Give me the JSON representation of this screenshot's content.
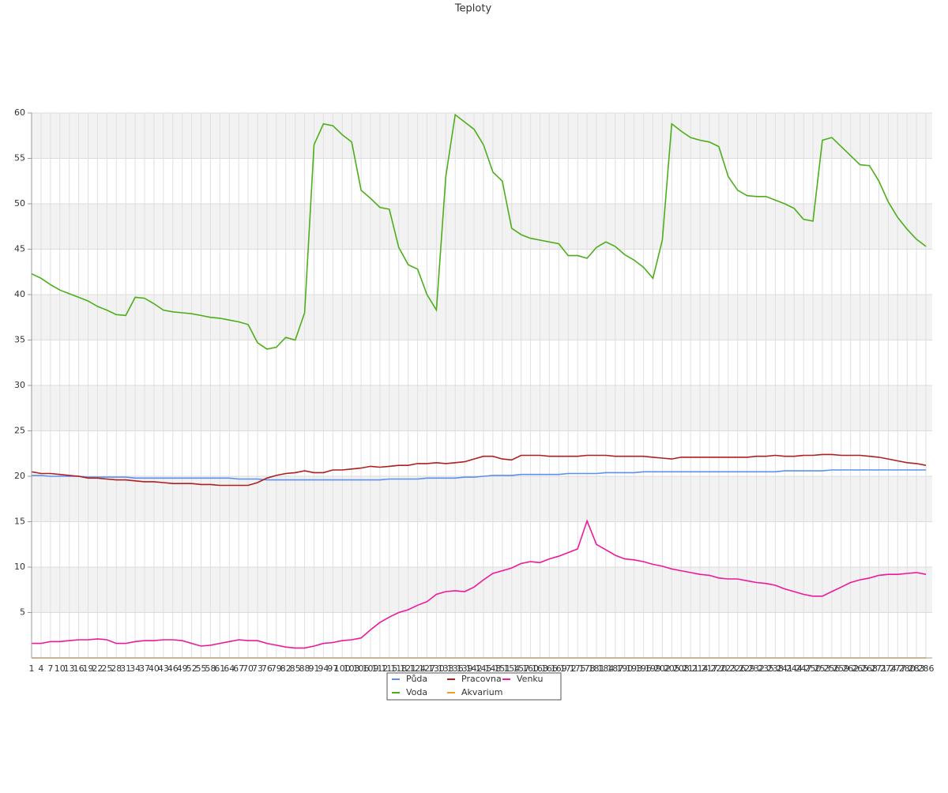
{
  "chart_data": {
    "type": "line",
    "title": "Teploty",
    "x": [
      1,
      4,
      7,
      10,
      13,
      16,
      19,
      22,
      25,
      28,
      31,
      34,
      37,
      40,
      43,
      46,
      49,
      52,
      55,
      58,
      61,
      64,
      67,
      70,
      73,
      76,
      79,
      82,
      85,
      88,
      91,
      94,
      97,
      100,
      103,
      106,
      109,
      112,
      115,
      118,
      121,
      124,
      127,
      130,
      133,
      136,
      139,
      142,
      145,
      148,
      151,
      154,
      157,
      160,
      163,
      166,
      169,
      172,
      175,
      178,
      181,
      184,
      187,
      190,
      193,
      196,
      199,
      202,
      205,
      208,
      211,
      214,
      217,
      220,
      223,
      226,
      229,
      232,
      235,
      238,
      241,
      244,
      247,
      250,
      253,
      256,
      259,
      262,
      265,
      268,
      271,
      274,
      277,
      280,
      283,
      286
    ],
    "xlim": [
      1,
      288
    ],
    "ylim": [
      0,
      60
    ],
    "yticks": [
      5,
      10,
      15,
      20,
      25,
      30,
      35,
      40,
      45,
      50,
      55,
      60
    ],
    "grid": true,
    "series": [
      {
        "name": "Půda",
        "color": "#5b8ff0",
        "values": [
          20.1,
          20.1,
          20.0,
          20.0,
          20.0,
          20.0,
          19.9,
          19.9,
          19.9,
          19.9,
          19.9,
          19.8,
          19.8,
          19.8,
          19.8,
          19.8,
          19.8,
          19.8,
          19.8,
          19.8,
          19.8,
          19.8,
          19.7,
          19.7,
          19.7,
          19.6,
          19.6,
          19.6,
          19.6,
          19.6,
          19.6,
          19.6,
          19.6,
          19.6,
          19.6,
          19.6,
          19.6,
          19.6,
          19.7,
          19.7,
          19.7,
          19.7,
          19.8,
          19.8,
          19.8,
          19.8,
          19.9,
          19.9,
          20.0,
          20.1,
          20.1,
          20.1,
          20.2,
          20.2,
          20.2,
          20.2,
          20.2,
          20.3,
          20.3,
          20.3,
          20.3,
          20.4,
          20.4,
          20.4,
          20.4,
          20.5,
          20.5,
          20.5,
          20.5,
          20.5,
          20.5,
          20.5,
          20.5,
          20.5,
          20.5,
          20.5,
          20.5,
          20.5,
          20.5,
          20.5,
          20.6,
          20.6,
          20.6,
          20.6,
          20.6,
          20.7,
          20.7,
          20.7,
          20.7,
          20.7,
          20.7,
          20.7,
          20.7,
          20.7,
          20.7,
          20.7
        ]
      },
      {
        "name": "Voda",
        "color": "#4caf1a",
        "values": [
          42.3,
          41.8,
          41.1,
          40.5,
          40.1,
          39.7,
          39.3,
          38.7,
          38.3,
          37.8,
          37.7,
          39.7,
          39.6,
          39.0,
          38.3,
          38.1,
          38.0,
          37.9,
          37.7,
          37.5,
          37.4,
          37.2,
          37.0,
          36.7,
          34.7,
          34.0,
          34.2,
          35.3,
          35.0,
          38.0,
          56.5,
          58.8,
          58.6,
          57.6,
          56.8,
          51.5,
          50.6,
          49.6,
          49.4,
          45.2,
          43.3,
          42.8,
          40.0,
          38.3,
          53.0,
          59.8,
          59.0,
          58.2,
          56.5,
          53.5,
          52.5,
          47.3,
          46.6,
          46.2,
          46.0,
          45.8,
          45.6,
          44.3,
          44.3,
          44.0,
          45.2,
          45.8,
          45.3,
          44.4,
          43.8,
          43.0,
          41.8,
          46.0,
          58.8,
          58.0,
          57.3,
          57.0,
          56.8,
          56.3,
          53.0,
          51.5,
          50.9,
          50.8,
          50.8,
          50.4,
          50.0,
          49.5,
          48.3,
          48.1,
          57.0,
          57.3,
          56.3,
          55.3,
          54.3,
          54.2,
          52.5,
          50.2,
          48.5,
          47.2,
          46.1,
          45.3
        ]
      },
      {
        "name": "Pracovna",
        "color": "#b01f1f",
        "values": [
          20.5,
          20.3,
          20.3,
          20.2,
          20.1,
          20.0,
          19.8,
          19.8,
          19.7,
          19.6,
          19.6,
          19.5,
          19.4,
          19.4,
          19.3,
          19.2,
          19.2,
          19.2,
          19.1,
          19.1,
          19.0,
          19.0,
          19.0,
          19.0,
          19.3,
          19.8,
          20.1,
          20.3,
          20.4,
          20.6,
          20.4,
          20.4,
          20.7,
          20.7,
          20.8,
          20.9,
          21.1,
          21.0,
          21.1,
          21.2,
          21.2,
          21.4,
          21.4,
          21.5,
          21.4,
          21.5,
          21.6,
          21.9,
          22.2,
          22.2,
          21.9,
          21.8,
          22.3,
          22.3,
          22.3,
          22.2,
          22.2,
          22.2,
          22.2,
          22.3,
          22.3,
          22.3,
          22.2,
          22.2,
          22.2,
          22.2,
          22.1,
          22.0,
          21.9,
          22.1,
          22.1,
          22.1,
          22.1,
          22.1,
          22.1,
          22.1,
          22.1,
          22.2,
          22.2,
          22.3,
          22.2,
          22.2,
          22.3,
          22.3,
          22.4,
          22.4,
          22.3,
          22.3,
          22.3,
          22.2,
          22.1,
          21.9,
          21.7,
          21.5,
          21.4,
          21.2
        ]
      },
      {
        "name": "Akvarium",
        "color": "#f0a020",
        "values": [
          0,
          0,
          0,
          0,
          0,
          0,
          0,
          0,
          0,
          0,
          0,
          0,
          0,
          0,
          0,
          0,
          0,
          0,
          0,
          0,
          0,
          0,
          0,
          0,
          0,
          0,
          0,
          0,
          0,
          0,
          0,
          0,
          0,
          0,
          0,
          0,
          0,
          0,
          0,
          0,
          0,
          0,
          0,
          0,
          0,
          0,
          0,
          0,
          0,
          0,
          0,
          0,
          0,
          0,
          0,
          0,
          0,
          0,
          0,
          0,
          0,
          0,
          0,
          0,
          0,
          0,
          0,
          0,
          0,
          0,
          0,
          0,
          0,
          0,
          0,
          0,
          0,
          0,
          0,
          0,
          0,
          0,
          0,
          0,
          0,
          0,
          0,
          0,
          0,
          0,
          0,
          0,
          0,
          0,
          0,
          0
        ]
      },
      {
        "name": "Venku",
        "color": "#f0189a",
        "values": [
          1.6,
          1.6,
          1.8,
          1.8,
          1.9,
          2.0,
          2.0,
          2.1,
          2.0,
          1.6,
          1.6,
          1.8,
          1.9,
          1.9,
          2.0,
          2.0,
          1.9,
          1.6,
          1.3,
          1.4,
          1.6,
          1.8,
          2.0,
          1.9,
          1.9,
          1.6,
          1.4,
          1.2,
          1.1,
          1.1,
          1.3,
          1.6,
          1.7,
          1.9,
          2.0,
          2.2,
          3.1,
          3.9,
          4.5,
          5.0,
          5.3,
          5.8,
          6.2,
          7.0,
          7.3,
          7.4,
          7.3,
          7.8,
          8.6,
          9.3,
          9.6,
          9.9,
          10.4,
          10.6,
          10.5,
          10.9,
          11.2,
          11.6,
          12.0,
          15.1,
          12.5,
          11.9,
          11.3,
          10.9,
          10.8,
          10.6,
          10.3,
          10.1,
          9.8,
          9.6,
          9.4,
          9.2,
          9.1,
          8.8,
          8.7,
          8.7,
          8.5,
          8.3,
          8.2,
          8.0,
          7.6,
          7.3,
          7.0,
          6.8,
          6.8,
          7.3,
          7.8,
          8.3,
          8.6,
          8.8,
          9.1,
          9.2,
          9.2,
          9.3,
          9.4,
          9.2
        ]
      }
    ]
  }
}
